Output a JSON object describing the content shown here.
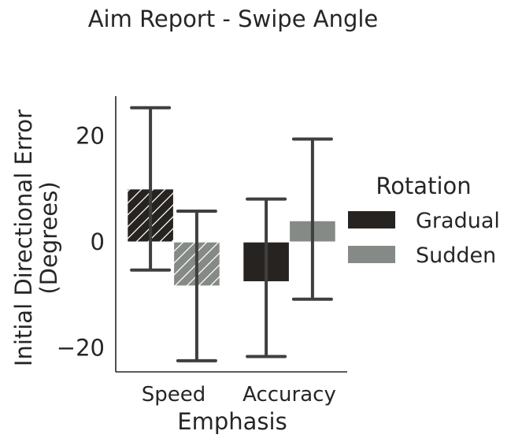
{
  "chart_data": {
    "type": "bar",
    "title": "Aim Report - Swipe Angle",
    "xlabel": "Emphasis",
    "ylabel_lines": [
      "Initial Directional Error",
      "(Degrees)"
    ],
    "categories": [
      "Speed",
      "Accuracy"
    ],
    "ylim": [
      -24.5,
      27.5
    ],
    "yticks": [
      20,
      0,
      -20
    ],
    "ytick_labels": [
      "20",
      "0",
      "−20"
    ],
    "grid": false,
    "legend": {
      "title": "Rotation",
      "placement": "right"
    },
    "series": [
      {
        "name": "Gradual",
        "color": "#272320",
        "values": [
          10.0,
          -7.5
        ],
        "ci_low": [
          -5.3,
          -21.6
        ],
        "ci_high": [
          25.3,
          8.1
        ],
        "hatch": [
          true,
          false
        ]
      },
      {
        "name": "Sudden",
        "color": "#858a86",
        "values": [
          -8.3,
          4.0
        ],
        "ci_low": [
          -22.4,
          -10.8
        ],
        "ci_high": [
          5.8,
          19.4
        ],
        "hatch": [
          true,
          false
        ]
      }
    ]
  }
}
